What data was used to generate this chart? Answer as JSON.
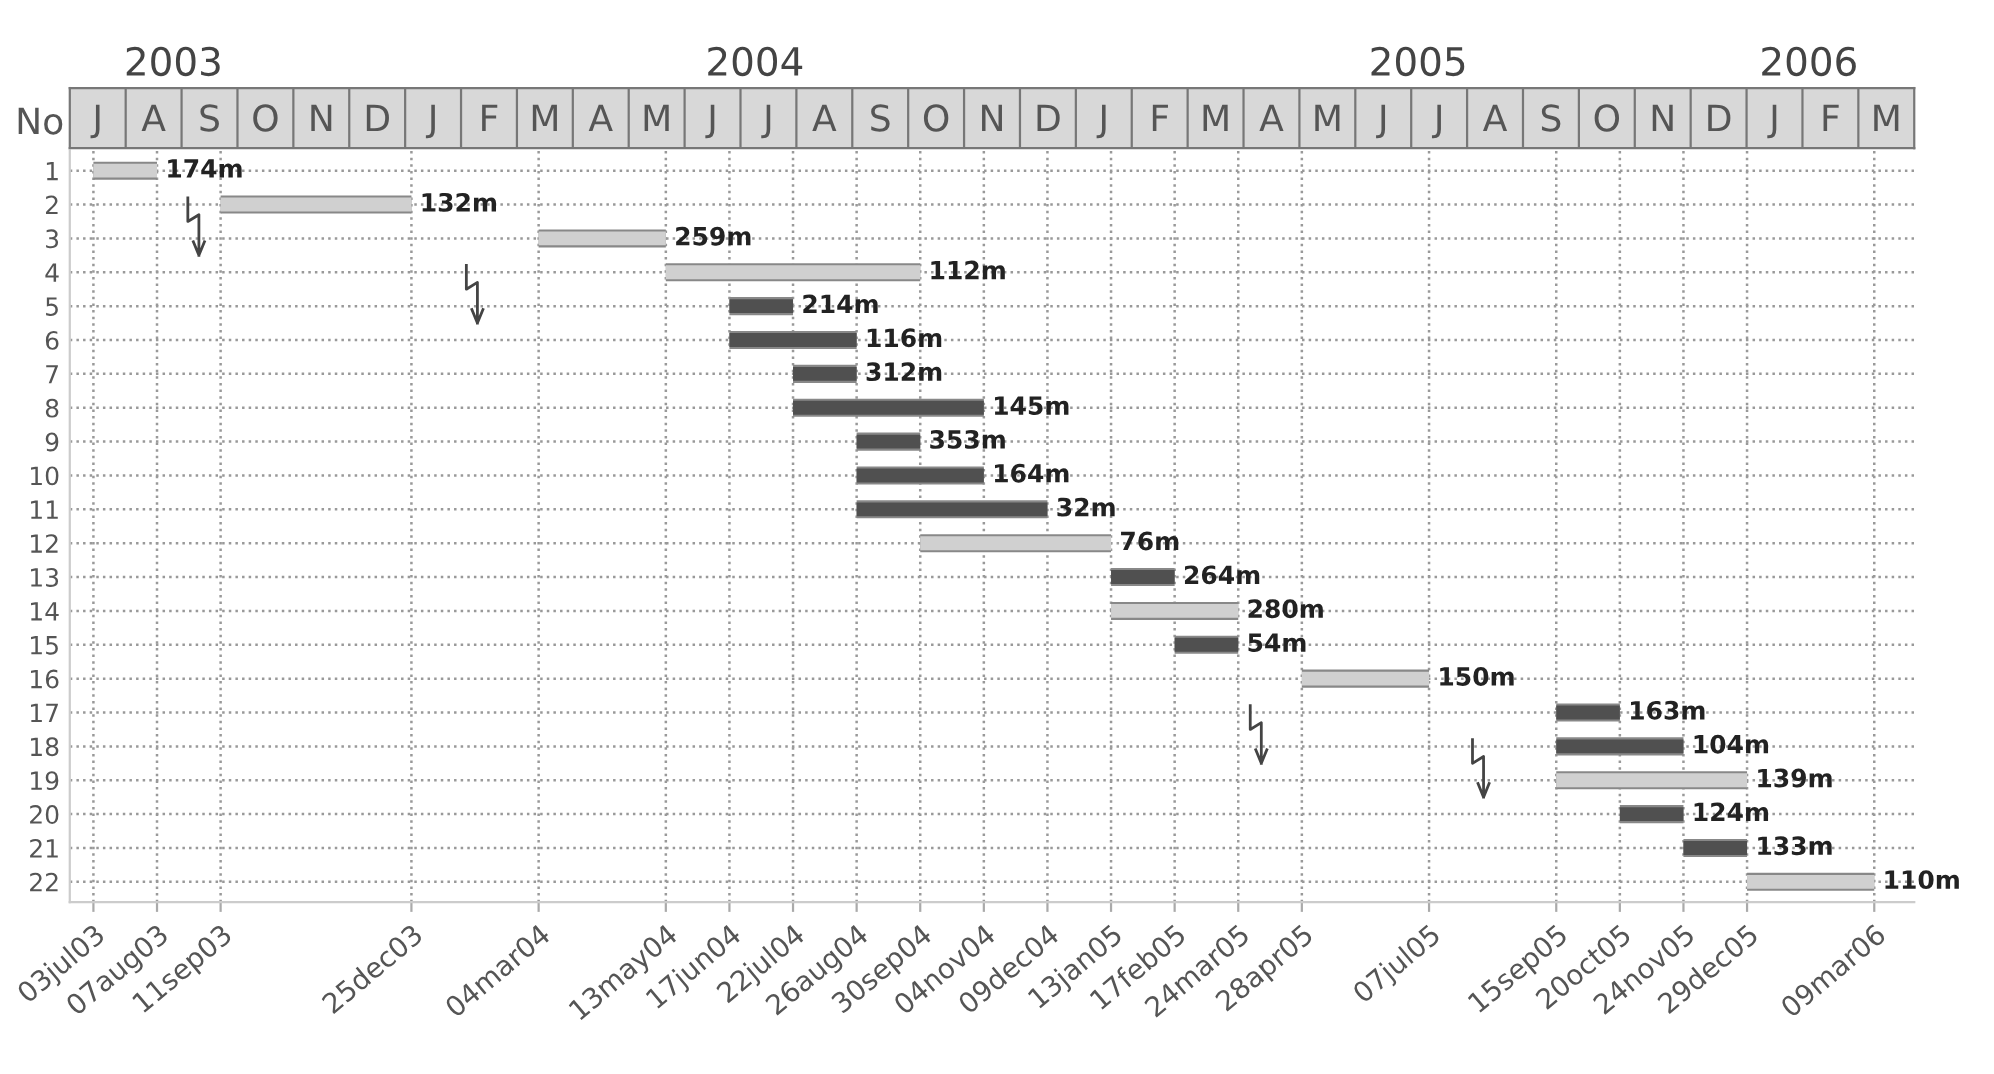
{
  "chart_data": [
    {
      "type": "other",
      "ylabel": "No",
      "categories": [
        "J",
        "A",
        "S",
        "O",
        "N",
        "D",
        "J",
        "F",
        "M",
        "A",
        "M",
        "J",
        "J",
        "A",
        "S",
        "O",
        "N",
        "D",
        "J",
        "F",
        "M",
        "A",
        "M",
        "J",
        "J",
        "A",
        "S",
        "O",
        "N",
        "D",
        "J",
        "F",
        "M"
      ]
    },
    {
      "type": "line",
      "marker": "none",
      "series": [
        {
          "x": [
            "2003-07-03",
            "2003-08-07"
          ],
          "values": [
            1,
            1
          ],
          "color": "#d0d0d0"
        },
        {
          "x": [
            "2003-09-11",
            "2003-12-25"
          ],
          "values": [
            2,
            2
          ],
          "color": "#d0d0d0"
        },
        {
          "x": [
            "2004-03-04",
            "2004-05-13"
          ],
          "values": [
            3,
            3
          ],
          "color": "#d0d0d0"
        },
        {
          "x": [
            "2004-05-13",
            "2004-09-30"
          ],
          "values": [
            4,
            4
          ],
          "color": "#d0d0d0"
        },
        {
          "x": [
            "2004-06-17",
            "2004-07-22"
          ],
          "values": [
            5,
            5
          ],
          "color": "#505050"
        },
        {
          "x": [
            "2004-06-17",
            "2004-08-26"
          ],
          "values": [
            6,
            6
          ],
          "color": "#505050"
        },
        {
          "x": [
            "2004-07-22",
            "2004-08-26"
          ],
          "values": [
            7,
            7
          ],
          "color": "#505050"
        },
        {
          "x": [
            "2004-07-22",
            "2004-11-04"
          ],
          "values": [
            8,
            8
          ],
          "color": "#505050"
        },
        {
          "x": [
            "2004-08-26",
            "2004-09-30"
          ],
          "values": [
            9,
            9
          ],
          "color": "#505050"
        },
        {
          "x": [
            "2004-08-26",
            "2004-11-04"
          ],
          "values": [
            10,
            10
          ],
          "color": "#505050"
        },
        {
          "x": [
            "2004-08-26",
            "2004-12-09"
          ],
          "values": [
            11,
            11
          ],
          "color": "#505050"
        },
        {
          "x": [
            "2004-09-30",
            "2005-01-13"
          ],
          "values": [
            12,
            12
          ],
          "color": "#d0d0d0"
        },
        {
          "x": [
            "2005-01-13",
            "2005-02-17"
          ],
          "values": [
            13,
            13
          ],
          "color": "#505050"
        },
        {
          "x": [
            "2005-01-13",
            "2005-03-24"
          ],
          "values": [
            14,
            14
          ],
          "color": "#d0d0d0"
        },
        {
          "x": [
            "2005-02-17",
            "2005-03-24"
          ],
          "values": [
            15,
            15
          ],
          "color": "#505050"
        },
        {
          "x": [
            "2005-04-28",
            "2005-07-07"
          ],
          "values": [
            16,
            16
          ],
          "color": "#d0d0d0"
        },
        {
          "x": [
            "2005-09-15",
            "2005-10-20"
          ],
          "values": [
            17,
            17
          ],
          "color": "#505050"
        },
        {
          "x": [
            "2005-09-15",
            "2005-11-24"
          ],
          "values": [
            18,
            18
          ],
          "color": "#505050"
        },
        {
          "x": [
            "2005-09-15",
            "2005-12-29"
          ],
          "values": [
            19,
            19
          ],
          "color": "#d0d0d0"
        },
        {
          "x": [
            "2005-10-20",
            "2005-11-24"
          ],
          "values": [
            20,
            20
          ],
          "color": "#505050"
        },
        {
          "x": [
            "2005-11-24",
            "2005-12-29"
          ],
          "values": [
            21,
            21
          ],
          "color": "#505050"
        },
        {
          "x": [
            "2005-12-29",
            "2006-03-09"
          ],
          "values": [
            22,
            22
          ],
          "color": "#d0d0d0"
        }
      ],
      "annotations": [
        {
          "text": "174m",
          "x": "2003-08-07",
          "y": 1
        },
        {
          "text": "132m",
          "x": "2003-12-25",
          "y": 2
        },
        {
          "text": "259m",
          "x": "2004-05-13",
          "y": 3
        },
        {
          "text": "112m",
          "x": "2004-09-30",
          "y": 4
        },
        {
          "text": "214m",
          "x": "2004-07-22",
          "y": 5
        },
        {
          "text": "116m",
          "x": "2004-08-26",
          "y": 6
        },
        {
          "text": "312m",
          "x": "2004-08-26",
          "y": 7
        },
        {
          "text": "145m",
          "x": "2004-11-04",
          "y": 8
        },
        {
          "text": "353m",
          "x": "2004-09-30",
          "y": 9
        },
        {
          "text": "164m",
          "x": "2004-11-04",
          "y": 10
        },
        {
          "text": "32m",
          "x": "2004-12-09",
          "y": 11
        },
        {
          "text": "76m",
          "x": "2005-01-13",
          "y": 12
        },
        {
          "text": "264m",
          "x": "2005-02-17",
          "y": 13
        },
        {
          "text": "280m",
          "x": "2005-03-24",
          "y": 14
        },
        {
          "text": "54m",
          "x": "2005-03-24",
          "y": 15
        },
        {
          "text": "150m",
          "x": "2005-07-07",
          "y": 16
        },
        {
          "text": "163m",
          "x": "2005-10-20",
          "y": 17
        },
        {
          "text": "104m",
          "x": "2005-11-24",
          "y": 18
        },
        {
          "text": "139m",
          "x": "2005-12-29",
          "y": 19
        },
        {
          "text": "124m",
          "x": "2005-11-24",
          "y": 20
        },
        {
          "text": "133m",
          "x": "2005-12-29",
          "y": 21
        },
        {
          "text": "110m",
          "x": "2006-03-09",
          "y": 22
        }
      ],
      "ylim": [
        22.6,
        0.4
      ],
      "yticks": [
        1,
        2,
        3,
        4,
        5,
        6,
        7,
        8,
        9,
        10,
        11,
        12,
        13,
        14,
        15,
        16,
        17,
        18,
        19,
        20,
        21,
        22
      ],
      "xlim": [
        "2003-06-20",
        "2006-03-31"
      ],
      "xticks": [
        {
          "value": "2003-07-03",
          "label": "03jul03"
        },
        {
          "value": "2003-08-07",
          "label": "07aug03"
        },
        {
          "value": "2003-09-11",
          "label": "11sep03"
        },
        {
          "value": "2003-12-25",
          "label": "25dec03"
        },
        {
          "value": "2004-03-04",
          "label": "04mar04"
        },
        {
          "value": "2004-05-13",
          "label": "13may04"
        },
        {
          "value": "2004-06-17",
          "label": "17jun04"
        },
        {
          "value": "2004-07-22",
          "label": "22jul04"
        },
        {
          "value": "2004-08-26",
          "label": "26aug04"
        },
        {
          "value": "2004-09-30",
          "label": "30sep04"
        },
        {
          "value": "2004-11-04",
          "label": "04nov04"
        },
        {
          "value": "2004-12-09",
          "label": "09dec04"
        },
        {
          "value": "2005-01-13",
          "label": "13jan05"
        },
        {
          "value": "2005-02-17",
          "label": "17feb05"
        },
        {
          "value": "2005-03-24",
          "label": "24mar05"
        },
        {
          "value": "2005-04-28",
          "label": "28apr05"
        },
        {
          "value": "2005-07-07",
          "label": "07jul05"
        },
        {
          "value": "2005-09-15",
          "label": "15sep05"
        },
        {
          "value": "2005-10-20",
          "label": "20oct05"
        },
        {
          "value": "2005-11-24",
          "label": "24nov05"
        },
        {
          "value": "2005-12-29",
          "label": "29dec05"
        },
        {
          "value": "2006-03-09",
          "label": "09mar06"
        }
      ],
      "x2lim": [
        "2003-06-20",
        "2006-03-31"
      ],
      "x2ticks": [
        {
          "value": "2003-08-16",
          "label": "2003"
        },
        {
          "value": "2004-07-01",
          "label": "2004"
        },
        {
          "value": "2005-07-01",
          "label": "2005"
        },
        {
          "value": "2006-02-01",
          "label": "2006"
        }
      ],
      "grid": true
    }
  ]
}
